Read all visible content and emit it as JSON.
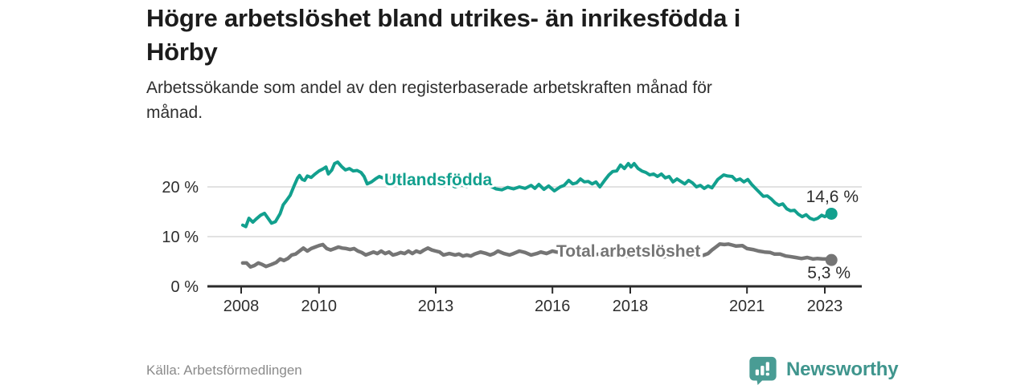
{
  "header": {
    "title": "Högre arbetslöshet bland utrikes- än inrikesfödda i Hörby",
    "title_lines": [
      "Högre arbetslöshet bland utrikes- än inrikesfödda i",
      "Hörby"
    ],
    "subtitle_lines": [
      "Arbetssökande som andel av den registerbaserade arbetskraften månad för",
      "månad."
    ]
  },
  "footer": {
    "source": "Källa: Arbetsförmedlingen",
    "brand": "Newsworthy"
  },
  "colors": {
    "teal_line": "#12a08e",
    "gray_line": "#757575",
    "grid": "#d9d9d9",
    "axis": "#2b2b2b",
    "tick_text": "#2e2e2e",
    "value_text": "#2e2e2e",
    "brand_teal": "#3f958d"
  },
  "chart_data": {
    "type": "line",
    "title": "Högre arbetslöshet bland utrikes- än inrikesfödda i Hörby",
    "subtitle": "Arbetssökande som andel av den registerbaserade arbetskraften månad för månad.",
    "xlabel": "",
    "ylabel": "",
    "xlim": [
      2007.15,
      2023.95
    ],
    "ylim": [
      0,
      26
    ],
    "grid": "horizontal",
    "legend_position": "inline-labels",
    "x_ticks": [
      {
        "value": 2008,
        "label": "2008"
      },
      {
        "value": 2010,
        "label": "2010"
      },
      {
        "value": 2013,
        "label": "2013"
      },
      {
        "value": 2016,
        "label": "2016"
      },
      {
        "value": 2018,
        "label": "2018"
      },
      {
        "value": 2021,
        "label": "2021"
      },
      {
        "value": 2023,
        "label": "2023"
      }
    ],
    "y_ticks": [
      {
        "value": 0,
        "label": "0 %"
      },
      {
        "value": 10,
        "label": "10 %"
      },
      {
        "value": 20,
        "label": "20 %"
      }
    ],
    "series": [
      {
        "name": "Utlandsfödda",
        "color": "#12a08e",
        "end_label": "14,6 %",
        "last_value": 14.6,
        "points": [
          [
            2008.04,
            12.3
          ],
          [
            2008.12,
            12.0
          ],
          [
            2008.2,
            13.7
          ],
          [
            2008.3,
            12.9
          ],
          [
            2008.38,
            13.5
          ],
          [
            2008.5,
            14.3
          ],
          [
            2008.6,
            14.7
          ],
          [
            2008.68,
            13.8
          ],
          [
            2008.78,
            12.7
          ],
          [
            2008.88,
            13.0
          ],
          [
            2009.0,
            14.6
          ],
          [
            2009.08,
            16.4
          ],
          [
            2009.16,
            17.2
          ],
          [
            2009.26,
            18.3
          ],
          [
            2009.36,
            20.2
          ],
          [
            2009.45,
            21.8
          ],
          [
            2009.5,
            22.3
          ],
          [
            2009.57,
            21.5
          ],
          [
            2009.63,
            21.3
          ],
          [
            2009.7,
            22.2
          ],
          [
            2009.8,
            21.9
          ],
          [
            2009.9,
            22.6
          ],
          [
            2010.0,
            23.2
          ],
          [
            2010.1,
            23.6
          ],
          [
            2010.18,
            24.0
          ],
          [
            2010.24,
            22.6
          ],
          [
            2010.33,
            23.4
          ],
          [
            2010.4,
            24.7
          ],
          [
            2010.48,
            25.0
          ],
          [
            2010.58,
            24.1
          ],
          [
            2010.68,
            23.4
          ],
          [
            2010.78,
            23.7
          ],
          [
            2010.88,
            23.2
          ],
          [
            2010.98,
            23.3
          ],
          [
            2011.08,
            22.9
          ],
          [
            2011.16,
            22.1
          ],
          [
            2011.24,
            20.6
          ],
          [
            2011.35,
            21.0
          ],
          [
            2011.45,
            21.6
          ],
          [
            2011.55,
            22.1
          ],
          [
            2011.7,
            21.6
          ],
          [
            2011.85,
            21.9
          ],
          [
            2012.0,
            21.3
          ],
          [
            2012.15,
            21.6
          ],
          [
            2012.3,
            20.9
          ],
          [
            2012.45,
            21.2
          ],
          [
            2012.6,
            20.6
          ],
          [
            2012.75,
            20.9
          ],
          [
            2012.9,
            20.4
          ],
          [
            2013.05,
            20.7
          ],
          [
            2013.2,
            20.2
          ],
          [
            2013.35,
            20.5
          ],
          [
            2013.5,
            20.0
          ],
          [
            2013.65,
            20.4
          ],
          [
            2013.8,
            20.1
          ],
          [
            2013.95,
            20.5
          ],
          [
            2014.1,
            20.2
          ],
          [
            2014.25,
            20.4
          ],
          [
            2014.4,
            20.2
          ],
          [
            2014.55,
            19.6
          ],
          [
            2014.7,
            19.4
          ],
          [
            2014.85,
            19.9
          ],
          [
            2015.0,
            19.6
          ],
          [
            2015.15,
            20.0
          ],
          [
            2015.3,
            19.7
          ],
          [
            2015.45,
            20.3
          ],
          [
            2015.55,
            19.7
          ],
          [
            2015.65,
            20.5
          ],
          [
            2015.78,
            19.5
          ],
          [
            2015.9,
            20.2
          ],
          [
            2016.05,
            19.2
          ],
          [
            2016.2,
            20.0
          ],
          [
            2016.3,
            20.3
          ],
          [
            2016.42,
            21.3
          ],
          [
            2016.52,
            20.6
          ],
          [
            2016.62,
            20.8
          ],
          [
            2016.72,
            21.6
          ],
          [
            2016.82,
            21.0
          ],
          [
            2016.92,
            21.1
          ],
          [
            2017.02,
            20.6
          ],
          [
            2017.12,
            21.0
          ],
          [
            2017.22,
            20.0
          ],
          [
            2017.34,
            21.3
          ],
          [
            2017.45,
            22.4
          ],
          [
            2017.55,
            23.1
          ],
          [
            2017.65,
            23.2
          ],
          [
            2017.75,
            24.4
          ],
          [
            2017.85,
            23.7
          ],
          [
            2017.95,
            24.7
          ],
          [
            2018.02,
            24.0
          ],
          [
            2018.1,
            24.7
          ],
          [
            2018.2,
            23.7
          ],
          [
            2018.3,
            23.2
          ],
          [
            2018.4,
            22.9
          ],
          [
            2018.5,
            22.4
          ],
          [
            2018.6,
            22.6
          ],
          [
            2018.7,
            22.1
          ],
          [
            2018.8,
            22.6
          ],
          [
            2018.9,
            21.8
          ],
          [
            2019.0,
            22.1
          ],
          [
            2019.1,
            21.0
          ],
          [
            2019.2,
            21.6
          ],
          [
            2019.3,
            21.1
          ],
          [
            2019.4,
            20.6
          ],
          [
            2019.5,
            21.3
          ],
          [
            2019.6,
            20.8
          ],
          [
            2019.7,
            20.0
          ],
          [
            2019.8,
            20.3
          ],
          [
            2019.9,
            19.7
          ],
          [
            2020.0,
            20.2
          ],
          [
            2020.1,
            19.8
          ],
          [
            2020.25,
            21.5
          ],
          [
            2020.4,
            22.4
          ],
          [
            2020.5,
            22.2
          ],
          [
            2020.62,
            22.1
          ],
          [
            2020.72,
            21.3
          ],
          [
            2020.82,
            21.6
          ],
          [
            2020.92,
            21.0
          ],
          [
            2021.02,
            21.5
          ],
          [
            2021.12,
            20.5
          ],
          [
            2021.22,
            19.7
          ],
          [
            2021.32,
            18.9
          ],
          [
            2021.42,
            18.1
          ],
          [
            2021.52,
            18.2
          ],
          [
            2021.62,
            17.6
          ],
          [
            2021.72,
            16.8
          ],
          [
            2021.82,
            16.3
          ],
          [
            2021.92,
            16.6
          ],
          [
            2022.02,
            15.6
          ],
          [
            2022.12,
            15.2
          ],
          [
            2022.22,
            15.3
          ],
          [
            2022.32,
            14.5
          ],
          [
            2022.42,
            14.0
          ],
          [
            2022.52,
            14.4
          ],
          [
            2022.62,
            13.7
          ],
          [
            2022.72,
            13.4
          ],
          [
            2022.82,
            13.7
          ],
          [
            2022.92,
            14.3
          ],
          [
            2023.0,
            14.0
          ],
          [
            2023.08,
            14.5
          ],
          [
            2023.17,
            14.6
          ]
        ]
      },
      {
        "name": "Total arbetslöshet",
        "color": "#757575",
        "end_label": "5,3 %",
        "last_value": 5.3,
        "points": [
          [
            2008.04,
            4.7
          ],
          [
            2008.14,
            4.7
          ],
          [
            2008.24,
            3.9
          ],
          [
            2008.34,
            4.2
          ],
          [
            2008.44,
            4.7
          ],
          [
            2008.54,
            4.4
          ],
          [
            2008.64,
            4.0
          ],
          [
            2008.78,
            4.4
          ],
          [
            2008.9,
            4.8
          ],
          [
            2009.0,
            5.5
          ],
          [
            2009.1,
            5.2
          ],
          [
            2009.2,
            5.6
          ],
          [
            2009.3,
            6.3
          ],
          [
            2009.4,
            6.5
          ],
          [
            2009.5,
            7.1
          ],
          [
            2009.6,
            7.7
          ],
          [
            2009.7,
            7.1
          ],
          [
            2009.8,
            7.6
          ],
          [
            2009.9,
            7.9
          ],
          [
            2010.0,
            8.2
          ],
          [
            2010.1,
            8.4
          ],
          [
            2010.2,
            7.6
          ],
          [
            2010.3,
            7.3
          ],
          [
            2010.4,
            7.6
          ],
          [
            2010.5,
            7.9
          ],
          [
            2010.6,
            7.7
          ],
          [
            2010.7,
            7.6
          ],
          [
            2010.8,
            7.4
          ],
          [
            2010.9,
            7.6
          ],
          [
            2011.0,
            7.1
          ],
          [
            2011.1,
            6.8
          ],
          [
            2011.2,
            6.3
          ],
          [
            2011.3,
            6.6
          ],
          [
            2011.4,
            6.9
          ],
          [
            2011.5,
            6.6
          ],
          [
            2011.6,
            7.1
          ],
          [
            2011.7,
            6.6
          ],
          [
            2011.8,
            6.9
          ],
          [
            2011.9,
            6.3
          ],
          [
            2012.0,
            6.5
          ],
          [
            2012.1,
            6.8
          ],
          [
            2012.2,
            6.6
          ],
          [
            2012.3,
            7.1
          ],
          [
            2012.4,
            6.6
          ],
          [
            2012.5,
            7.1
          ],
          [
            2012.6,
            6.8
          ],
          [
            2012.7,
            7.3
          ],
          [
            2012.8,
            7.7
          ],
          [
            2012.9,
            7.3
          ],
          [
            2013.0,
            7.1
          ],
          [
            2013.1,
            6.9
          ],
          [
            2013.2,
            6.3
          ],
          [
            2013.35,
            6.6
          ],
          [
            2013.5,
            6.3
          ],
          [
            2013.6,
            6.5
          ],
          [
            2013.7,
            6.1
          ],
          [
            2013.8,
            6.3
          ],
          [
            2013.9,
            6.1
          ],
          [
            2014.0,
            6.5
          ],
          [
            2014.15,
            6.9
          ],
          [
            2014.3,
            6.6
          ],
          [
            2014.4,
            6.3
          ],
          [
            2014.5,
            6.6
          ],
          [
            2014.6,
            7.1
          ],
          [
            2014.75,
            6.6
          ],
          [
            2014.9,
            6.3
          ],
          [
            2015.0,
            6.6
          ],
          [
            2015.15,
            7.1
          ],
          [
            2015.3,
            6.8
          ],
          [
            2015.45,
            6.3
          ],
          [
            2015.6,
            6.6
          ],
          [
            2015.7,
            6.9
          ],
          [
            2015.85,
            6.6
          ],
          [
            2016.0,
            7.1
          ],
          [
            2016.1,
            6.9
          ],
          [
            2016.3,
            6.7
          ],
          [
            2016.45,
            6.5
          ],
          [
            2016.6,
            6.7
          ],
          [
            2016.75,
            6.4
          ],
          [
            2016.9,
            6.6
          ],
          [
            2017.05,
            6.3
          ],
          [
            2017.2,
            6.5
          ],
          [
            2017.35,
            6.2
          ],
          [
            2017.5,
            6.4
          ],
          [
            2017.65,
            6.1
          ],
          [
            2017.8,
            6.3
          ],
          [
            2017.95,
            6.0
          ],
          [
            2018.1,
            6.2
          ],
          [
            2018.25,
            6.0
          ],
          [
            2018.4,
            6.2
          ],
          [
            2018.55,
            5.9
          ],
          [
            2018.7,
            6.1
          ],
          [
            2018.85,
            5.9
          ],
          [
            2019.0,
            6.2
          ],
          [
            2019.15,
            6.0
          ],
          [
            2019.3,
            6.2
          ],
          [
            2019.45,
            5.9
          ],
          [
            2019.6,
            6.1
          ],
          [
            2019.75,
            6.0
          ],
          [
            2019.9,
            6.3
          ],
          [
            2020.0,
            6.6
          ],
          [
            2020.1,
            7.3
          ],
          [
            2020.2,
            7.9
          ],
          [
            2020.3,
            8.5
          ],
          [
            2020.42,
            8.4
          ],
          [
            2020.52,
            8.5
          ],
          [
            2020.62,
            8.3
          ],
          [
            2020.72,
            8.1
          ],
          [
            2020.88,
            8.2
          ],
          [
            2021.0,
            7.6
          ],
          [
            2021.15,
            7.4
          ],
          [
            2021.3,
            7.1
          ],
          [
            2021.45,
            6.9
          ],
          [
            2021.6,
            6.8
          ],
          [
            2021.7,
            6.5
          ],
          [
            2021.85,
            6.5
          ],
          [
            2022.0,
            6.1
          ],
          [
            2022.1,
            6.0
          ],
          [
            2022.25,
            5.8
          ],
          [
            2022.4,
            5.6
          ],
          [
            2022.55,
            5.8
          ],
          [
            2022.7,
            5.5
          ],
          [
            2022.8,
            5.6
          ],
          [
            2022.95,
            5.5
          ],
          [
            2023.08,
            5.5
          ],
          [
            2023.17,
            5.3
          ]
        ]
      }
    ]
  }
}
